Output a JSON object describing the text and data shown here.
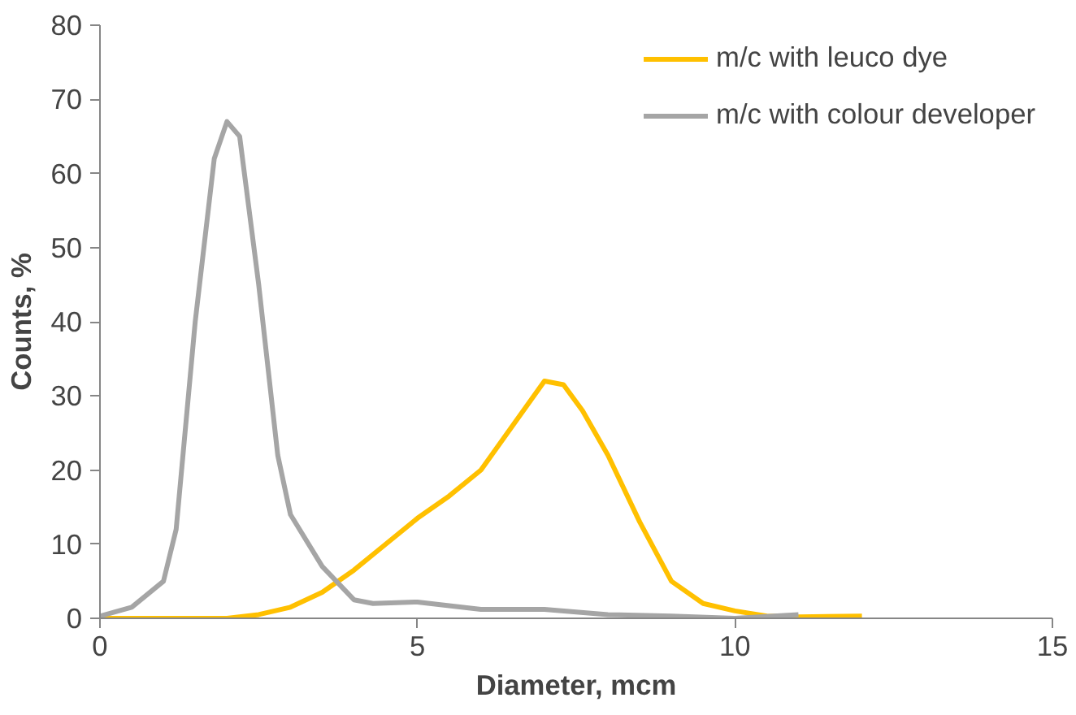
{
  "chart_data": {
    "type": "line",
    "xlabel": "Diameter, mcm",
    "ylabel": "Counts, %",
    "xlim": [
      0,
      15
    ],
    "xticks": [
      0,
      5,
      10,
      15
    ],
    "ylim": [
      0,
      80
    ],
    "yticks": [
      0,
      10,
      20,
      30,
      40,
      50,
      60,
      70,
      80
    ],
    "grid": false,
    "legend": "top right",
    "marker": "none",
    "line_style": "solid",
    "series": [
      {
        "name": "m/c with leuco dye",
        "color": "#ffc000",
        "x": [
          0,
          1,
          2,
          2.5,
          3,
          3.5,
          4,
          4.5,
          5,
          5.5,
          6,
          6.5,
          7,
          7.3,
          7.6,
          8,
          8.5,
          9,
          9.5,
          10,
          10.5,
          11,
          12
        ],
        "values": [
          0,
          0,
          0,
          0.5,
          1.5,
          3.5,
          6.5,
          10,
          13.5,
          16.5,
          20,
          26,
          32,
          31.5,
          28,
          22,
          13,
          5,
          2,
          1,
          0.3,
          0.2,
          0.3
        ]
      },
      {
        "name": "m/c with colour developer",
        "color": "#a5a5a5",
        "x": [
          0,
          0.5,
          1,
          1.2,
          1.5,
          1.8,
          2,
          2.2,
          2.5,
          2.8,
          3,
          3.5,
          4,
          4.3,
          5,
          6,
          7,
          8,
          9,
          10,
          11
        ],
        "values": [
          0.3,
          1.5,
          5,
          12,
          40,
          62,
          67,
          65,
          45,
          22,
          14,
          7,
          2.5,
          2,
          2.2,
          1.2,
          1.2,
          0.5,
          0.3,
          0,
          0.5
        ]
      }
    ]
  }
}
